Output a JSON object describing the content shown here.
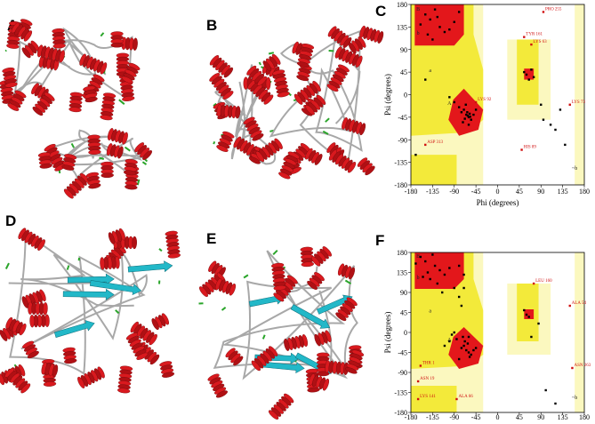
{
  "panel_labels": [
    "A",
    "B",
    "C",
    "D",
    "E",
    "F"
  ],
  "chart_data": [
    {
      "type": "scatter",
      "x_label": "Phi (degrees)",
      "y_label": "Psi (degrees)",
      "xlim": [
        -180,
        180
      ],
      "ylim": [
        -180,
        180
      ],
      "xticks": [
        -180,
        -135,
        -90,
        -45,
        0,
        45,
        90,
        135,
        180
      ],
      "yticks": [
        -180,
        -135,
        -90,
        -45,
        0,
        45,
        90,
        135,
        180
      ],
      "color": "#000000",
      "x": [
        -65,
        -60,
        -70,
        -55,
        -75,
        -62,
        -58,
        -68,
        -50,
        -80,
        -72,
        -66,
        -90,
        -100,
        -45,
        -60,
        -63,
        -57,
        -140,
        -120,
        -150,
        -130,
        -110,
        -160,
        -100,
        -125,
        -145,
        -90,
        -135,
        -80,
        -150,
        -170,
        60,
        55,
        65,
        70,
        75,
        90,
        95,
        110,
        120,
        130,
        140
      ],
      "values": [
        -40,
        -45,
        -30,
        -50,
        -35,
        -42,
        -38,
        -48,
        -40,
        -25,
        -55,
        -20,
        -15,
        -5,
        -30,
        -60,
        -35,
        -44,
        150,
        135,
        160,
        170,
        125,
        140,
        130,
        155,
        120,
        145,
        110,
        165,
        30,
        -120,
        40,
        45,
        30,
        50,
        35,
        -20,
        -50,
        -60,
        -70,
        -30,
        -100
      ],
      "region_labels": [
        {
          "text": "B",
          "x": -165,
          "y": 168
        },
        {
          "text": "b",
          "x": -165,
          "y": 120
        },
        {
          "text": "a",
          "x": -140,
          "y": 45
        },
        {
          "text": "A",
          "x": -100,
          "y": -20
        },
        {
          "text": "~b",
          "x": 160,
          "y": -150
        }
      ],
      "annotations": [
        {
          "text": "PRO 255",
          "x": 95,
          "y": 165
        },
        {
          "text": "TYR 161",
          "x": 55,
          "y": 115
        },
        {
          "text": "LYS 63",
          "x": 70,
          "y": 100
        },
        {
          "text": "LYS 73",
          "x": 150,
          "y": -20
        },
        {
          "text": "HIS 89",
          "x": 50,
          "y": -110
        },
        {
          "text": "ASP 313",
          "x": -150,
          "y": -100
        },
        {
          "text": "LYS 92",
          "x": -45,
          "y": -15
        }
      ]
    },
    {
      "type": "scatter",
      "y_label": "Psi (degrees)",
      "xlim": [
        -180,
        180
      ],
      "ylim": [
        -180,
        180
      ],
      "xticks": [
        -180,
        -135,
        -90,
        -45,
        0,
        45,
        90,
        135,
        180
      ],
      "yticks": [
        -180,
        -135,
        -90,
        -45,
        0,
        45,
        90,
        135,
        180
      ],
      "color": "#000000",
      "x": [
        -60,
        -65,
        -70,
        -55,
        -75,
        -62,
        -58,
        -68,
        -50,
        -85,
        -72,
        -95,
        -100,
        -110,
        -80,
        -60,
        -45,
        -90,
        -150,
        -130,
        -120,
        -160,
        -110,
        -140,
        -100,
        -135,
        -145,
        -125,
        -80,
        -70,
        -90,
        -115,
        -170,
        -155,
        -75,
        -80,
        -70,
        60,
        65,
        55,
        70,
        85,
        100,
        120
      ],
      "values": [
        -45,
        -40,
        -30,
        -50,
        -35,
        -25,
        -55,
        -20,
        -40,
        -15,
        -10,
        -5,
        -20,
        -30,
        -60,
        -10,
        -35,
        0,
        160,
        150,
        140,
        170,
        130,
        120,
        145,
        175,
        135,
        110,
        150,
        130,
        100,
        90,
        155,
        125,
        60,
        80,
        100,
        40,
        35,
        50,
        -10,
        20,
        -130,
        -160
      ],
      "region_labels": [
        {
          "text": "B",
          "x": -165,
          "y": 168
        },
        {
          "text": "b",
          "x": -165,
          "y": 120
        },
        {
          "text": "a",
          "x": -140,
          "y": 45
        },
        {
          "text": "A",
          "x": -100,
          "y": -20
        },
        {
          "text": "~b",
          "x": 160,
          "y": -150
        }
      ],
      "annotations": [
        {
          "text": "LEU 160",
          "x": 75,
          "y": 110
        },
        {
          "text": "ALA 54",
          "x": 150,
          "y": 60
        },
        {
          "text": "ASN 263",
          "x": 155,
          "y": -80
        },
        {
          "text": "THR 1",
          "x": -160,
          "y": -75
        },
        {
          "text": "ASN 19",
          "x": -165,
          "y": -110
        },
        {
          "text": "LYS 141",
          "x": -165,
          "y": -150
        },
        {
          "text": "ALA 66",
          "x": -85,
          "y": -150
        }
      ]
    }
  ]
}
